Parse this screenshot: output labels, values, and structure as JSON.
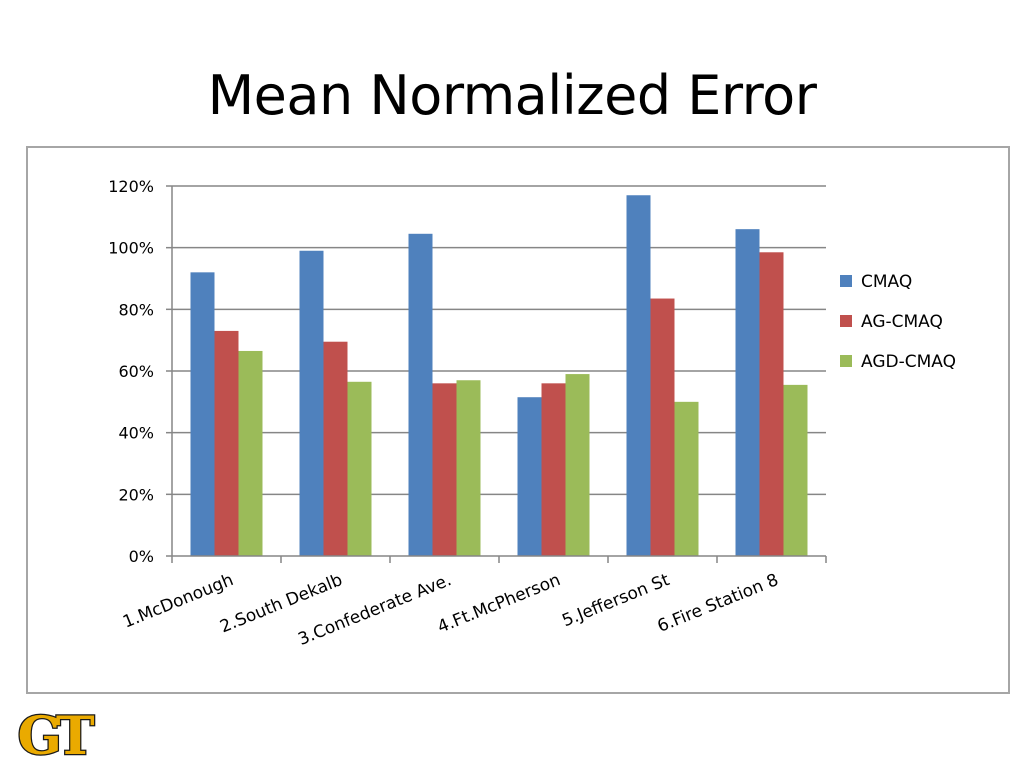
{
  "slide": {
    "title": "Mean Normalized Error",
    "logo_text": "GT"
  },
  "colors": {
    "CMAQ": "#4f81bd",
    "AG-CMAQ": "#c0504d",
    "AGD-CMAQ": "#9bbb59",
    "grid": "#868686",
    "frame": "#a6a6a6",
    "logo_fill": "#eaaa00",
    "logo_stroke": "#1a1a1a"
  },
  "chart_data": {
    "type": "bar",
    "title": "",
    "xlabel": "",
    "ylabel": "",
    "ylim": [
      0,
      120
    ],
    "yticks": [
      0,
      20,
      40,
      60,
      80,
      100,
      120
    ],
    "ytick_labels": [
      "0%",
      "20%",
      "40%",
      "60%",
      "80%",
      "100%",
      "120%"
    ],
    "grid": true,
    "legend_position": "right",
    "categories": [
      "1.McDonough",
      "2.South Dekalb",
      "3.Confederate Ave.",
      "4.Ft.McPherson",
      "5.Jefferson St",
      "6.Fire Station 8"
    ],
    "series": [
      {
        "name": "CMAQ",
        "values": [
          92,
          99,
          104.5,
          51.5,
          117,
          106
        ]
      },
      {
        "name": "AG-CMAQ",
        "values": [
          73,
          69.5,
          56,
          56,
          83.5,
          98.5
        ]
      },
      {
        "name": "AGD-CMAQ",
        "values": [
          66.5,
          56.5,
          57,
          59,
          50,
          55.5
        ]
      }
    ]
  }
}
